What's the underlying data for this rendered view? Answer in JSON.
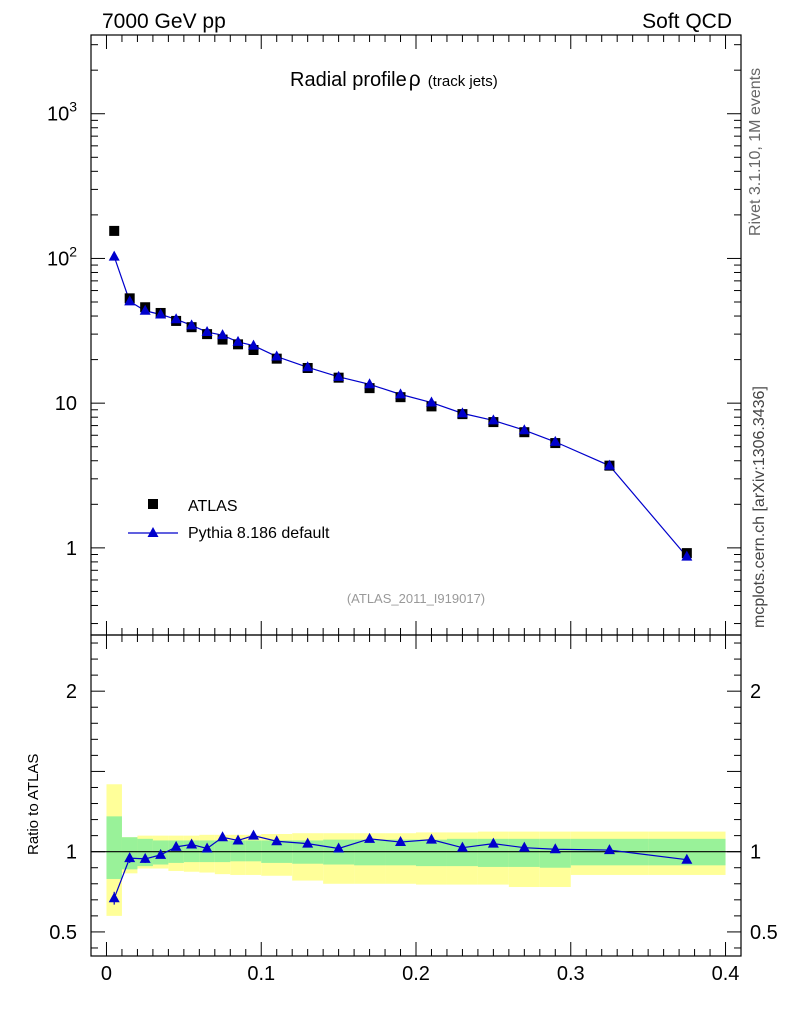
{
  "header": {
    "left": "7000 GeV pp",
    "right": "Soft QCD"
  },
  "side_labels": {
    "rivet": "Rivet 3.1.10,  1M events",
    "mcplots": "mcplots.cern.ch [arXiv:1306.3436]"
  },
  "chart_data": {
    "type": "scatter",
    "title": "Radial profile",
    "title_symbol": "ρ",
    "title_suffix": "(track jets)",
    "analysis_id": "(ATLAS_2011_I919017)",
    "x_scale": "linear",
    "xlim": [
      -0.01,
      0.41
    ],
    "x_ticks": [
      0,
      0.1,
      0.2,
      0.3,
      0.4
    ],
    "x_tick_labels": [
      "0",
      "0.1",
      "0.2",
      "0.3",
      "0.4"
    ],
    "main": {
      "y_scale": "log",
      "ylim": [
        0.25,
        3500
      ],
      "y_ticks": [
        {
          "value": 1,
          "label": "1"
        },
        {
          "value": 10,
          "label": "10"
        },
        {
          "value": 100,
          "label": "10",
          "exponent": "2"
        },
        {
          "value": 1000,
          "label": "10",
          "exponent": "3"
        }
      ]
    },
    "legend": [
      {
        "label": "ATLAS",
        "marker": "square",
        "color": "#000000"
      },
      {
        "label": "Pythia 8.186 default",
        "marker": "triangle",
        "color": "#0000cc"
      }
    ],
    "x": [
      0.005,
      0.015,
      0.025,
      0.035,
      0.045,
      0.055,
      0.065,
      0.075,
      0.085,
      0.095,
      0.11,
      0.13,
      0.15,
      0.17,
      0.19,
      0.21,
      0.23,
      0.25,
      0.27,
      0.29,
      0.325,
      0.375
    ],
    "series": [
      {
        "name": "ATLAS",
        "values": [
          155,
          53,
          46,
          42,
          37,
          33.5,
          30,
          27.5,
          25.5,
          23.3,
          20.3,
          17.5,
          15,
          12.7,
          11,
          9.5,
          8.4,
          7.4,
          6.3,
          5.3,
          3.7,
          0.92
        ]
      },
      {
        "name": "Pythia 8.186 default",
        "values": [
          103,
          50.5,
          43.5,
          41,
          38,
          34.5,
          31,
          29.5,
          26.5,
          25,
          21,
          17.7,
          15.2,
          13.5,
          11.5,
          10.1,
          8.5,
          7.6,
          6.5,
          5.4,
          3.7,
          0.87
        ]
      }
    ],
    "ratio": {
      "ylabel": "Ratio to ATLAS",
      "ylim": [
        0.35,
        2.35
      ],
      "y_ticks": [
        {
          "value": 0.5,
          "label": "0.5"
        },
        {
          "value": 1,
          "label": "1"
        },
        {
          "value": 2,
          "label": "2"
        }
      ],
      "values": [
        0.71,
        0.96,
        0.955,
        0.98,
        1.03,
        1.045,
        1.02,
        1.09,
        1.07,
        1.1,
        1.065,
        1.05,
        1.02,
        1.08,
        1.06,
        1.075,
        1.025,
        1.05,
        1.025,
        1.015,
        1.01,
        0.95
      ],
      "errors": [
        0.04,
        0.03,
        0.025,
        0.02,
        0.015,
        0.015,
        0.015,
        0.015,
        0.015,
        0.015,
        0.012,
        0.01,
        0.01,
        0.01,
        0.01,
        0.01,
        0.01,
        0.01,
        0.01,
        0.01,
        0.01,
        0.02
      ],
      "bins": [
        [
          0,
          0.01
        ],
        [
          0.01,
          0.02
        ],
        [
          0.02,
          0.03
        ],
        [
          0.03,
          0.04
        ],
        [
          0.04,
          0.05
        ],
        [
          0.05,
          0.06
        ],
        [
          0.06,
          0.07
        ],
        [
          0.07,
          0.08
        ],
        [
          0.08,
          0.09
        ],
        [
          0.09,
          0.1
        ],
        [
          0.1,
          0.12
        ],
        [
          0.12,
          0.14
        ],
        [
          0.14,
          0.16
        ],
        [
          0.16,
          0.18
        ],
        [
          0.18,
          0.2
        ],
        [
          0.2,
          0.22
        ],
        [
          0.22,
          0.24
        ],
        [
          0.24,
          0.26
        ],
        [
          0.26,
          0.28
        ],
        [
          0.28,
          0.3
        ],
        [
          0.3,
          0.35
        ],
        [
          0.35,
          0.4
        ]
      ],
      "band_stat_lo": [
        0.83,
        0.89,
        0.91,
        0.92,
        0.93,
        0.935,
        0.935,
        0.935,
        0.94,
        0.94,
        0.93,
        0.925,
        0.92,
        0.915,
        0.915,
        0.91,
        0.91,
        0.905,
        0.905,
        0.9,
        0.915,
        0.915
      ],
      "band_stat_hi": [
        1.22,
        1.09,
        1.08,
        1.07,
        1.07,
        1.07,
        1.07,
        1.07,
        1.07,
        1.07,
        1.07,
        1.07,
        1.075,
        1.075,
        1.075,
        1.075,
        1.08,
        1.08,
        1.08,
        1.08,
        1.08,
        1.08
      ],
      "band_tot_lo": [
        0.6,
        0.865,
        0.895,
        0.895,
        0.88,
        0.875,
        0.87,
        0.86,
        0.855,
        0.855,
        0.85,
        0.82,
        0.8,
        0.8,
        0.8,
        0.795,
        0.795,
        0.795,
        0.78,
        0.78,
        0.855,
        0.855
      ],
      "band_tot_hi": [
        1.42,
        1.09,
        1.1,
        1.1,
        1.1,
        1.1,
        1.105,
        1.105,
        1.105,
        1.105,
        1.11,
        1.115,
        1.115,
        1.115,
        1.115,
        1.12,
        1.12,
        1.125,
        1.125,
        1.125,
        1.125,
        1.125
      ]
    },
    "colors": {
      "data": "#000000",
      "mc": "#0000cc",
      "band_stat": "#99f299",
      "band_total": "#ffff99",
      "watermark": "#999999"
    }
  }
}
